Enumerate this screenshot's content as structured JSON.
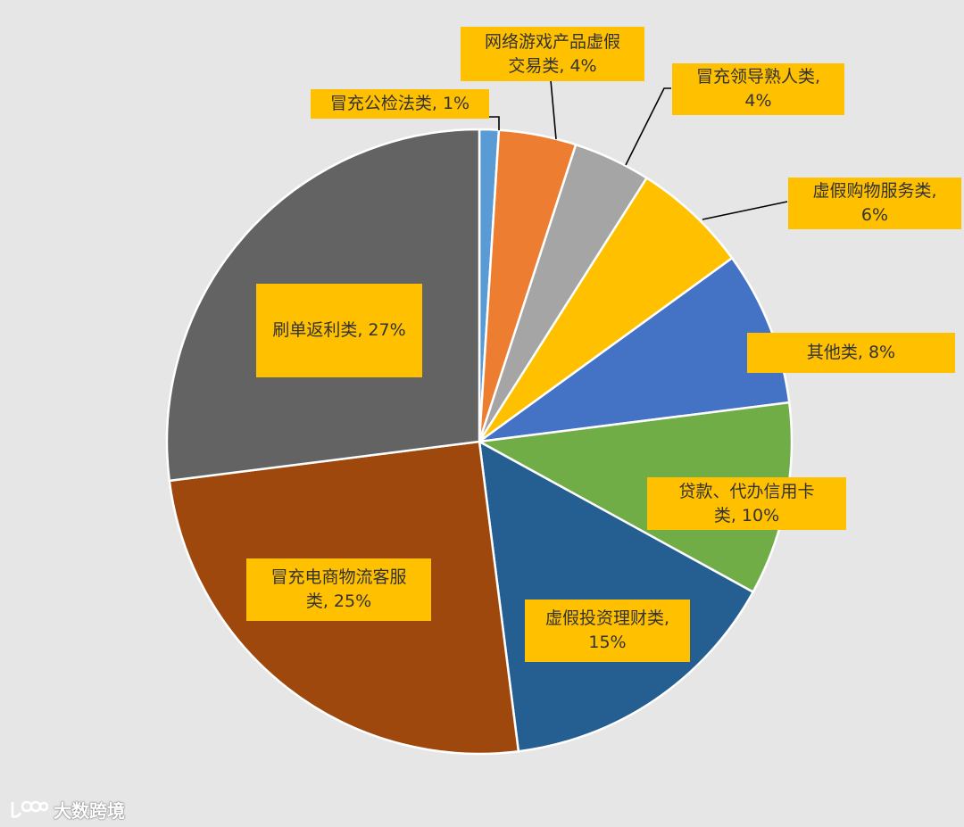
{
  "chart_data": {
    "type": "pie",
    "slices": [
      {
        "category": "冒充公检法类",
        "value": 1,
        "display": "1%",
        "color": "#5b9bd5"
      },
      {
        "category": "网络游戏产品虚假交易类",
        "value": 4,
        "display": "4%",
        "color": "#ed7d31"
      },
      {
        "category": "冒充领导熟人类",
        "value": 4,
        "display": "4%",
        "color": "#a5a5a5"
      },
      {
        "category": "虚假购物服务类",
        "value": 6,
        "display": "6%",
        "color": "#ffc000"
      },
      {
        "category": "其他类",
        "value": 8,
        "display": "8%",
        "color": "#4472c4"
      },
      {
        "category": "贷款、代办信用卡类",
        "value": 10,
        "display": "10%",
        "color": "#70ad47"
      },
      {
        "category": "虚假投资理财类",
        "value": 15,
        "display": "15%",
        "color": "#255e91"
      },
      {
        "category": "冒充电商物流客服类",
        "value": 25,
        "display": "25%",
        "color": "#9e480e"
      },
      {
        "category": "刷单返利类",
        "value": 27,
        "display": "27%",
        "color": "#636363"
      }
    ]
  },
  "labels": [
    {
      "line1": "冒充公检法类, 1%",
      "line2": ""
    },
    {
      "line1": "网络游戏产品虚假",
      "line2": "交易类, 4%"
    },
    {
      "line1": "冒充领导熟人类,",
      "line2": "4%"
    },
    {
      "line1": "虚假购物服务类,",
      "line2": "6%"
    },
    {
      "line1": "其他类, 8%",
      "line2": ""
    },
    {
      "line1": "贷款、代办信用卡",
      "line2": "类, 10%"
    },
    {
      "line1": "虚假投资理财类,",
      "line2": "15%"
    },
    {
      "line1": "冒充电商物流客服",
      "line2": "类, 25%"
    },
    {
      "line1": "刷单返利类, 27%",
      "line2": ""
    }
  ],
  "watermark": {
    "text": "大数跨境",
    "icon": "1000-logo-icon"
  }
}
